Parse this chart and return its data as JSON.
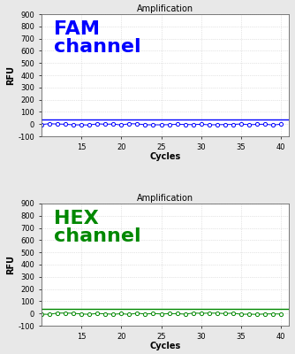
{
  "title": "Amplification",
  "xlabel": "Cycles",
  "ylabel": "RFU",
  "xlim": [
    10,
    41
  ],
  "ylim": [
    -100,
    900
  ],
  "yticks": [
    -100,
    0,
    100,
    200,
    300,
    400,
    500,
    600,
    700,
    800,
    900
  ],
  "xticks": [
    15,
    20,
    25,
    30,
    35,
    40
  ],
  "cycles_start": 10,
  "cycles_end": 40,
  "fam_color": "#0000FF",
  "hex_color": "#008800",
  "fam_label": "FAM\nchannel",
  "hex_label": "HEX\nchannel",
  "threshold_value": 40,
  "background_color": "#FFFFFF",
  "outer_bg_color": "#E8E8E8",
  "grid_color": "#CCCCCC",
  "title_fontsize": 7,
  "axis_label_fontsize": 7,
  "tick_fontsize": 6,
  "annotation_fontsize": 16
}
